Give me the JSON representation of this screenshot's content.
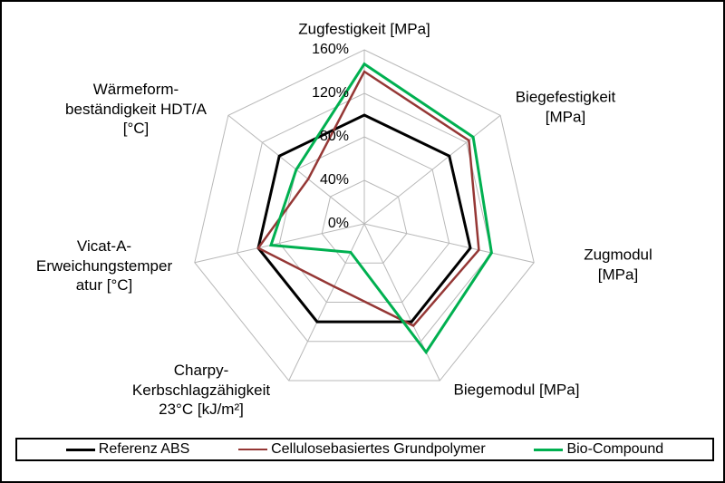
{
  "figure": {
    "background": "#FFFFFF",
    "border_color": "#000000"
  },
  "chart_data": {
    "type": "radar",
    "title": "",
    "unit": "%",
    "radial_range": [
      0,
      160
    ],
    "grid": true,
    "grid_color": "#B8B8B8",
    "ticks": [
      {
        "label": "160%",
        "value": 160
      },
      {
        "label": "120%",
        "value": 120
      },
      {
        "label": "80%",
        "value": 80
      },
      {
        "label": "40%",
        "value": 40
      },
      {
        "label": "0%",
        "value": 0
      }
    ],
    "axes": [
      {
        "id": "zugfestigkeit",
        "label": "Zugfestigkeit [MPa]",
        "label_lines": [
          "Zugfestigkeit [MPa]"
        ]
      },
      {
        "id": "biegefestigkeit",
        "label": "Biegefestigkeit [MPa]",
        "label_lines": [
          "Biegefestigkeit",
          "[MPa]"
        ]
      },
      {
        "id": "zugmodul",
        "label": "Zugmodul [MPa]",
        "label_lines": [
          "Zugmodul [MPa]"
        ]
      },
      {
        "id": "biegemodul",
        "label": "Biegemodul [MPa]",
        "label_lines": [
          "Biegemodul [MPa]"
        ]
      },
      {
        "id": "charpy",
        "label": "Charpy-Kerbschlagzähigkeit 23°C [kJ/m²]",
        "label_lines": [
          "Charpy-",
          "Kerbschlagzähigkeit",
          "23°C [kJ/m²]"
        ]
      },
      {
        "id": "vicat",
        "label": "Vicat-A-Erweichungstemperatur [°C]",
        "label_lines": [
          "Vicat-A-",
          "Erweichungstemper",
          "atur [°C]"
        ]
      },
      {
        "id": "waermeform",
        "label": "Wärmeformbeständigkeit HDT/A [°C]",
        "label_lines": [
          "Wärmeform-",
          "beständigkeit HDT/A",
          "[°C]"
        ]
      }
    ],
    "series": [
      {
        "name": "Referenz ABS",
        "color": "#000000",
        "stroke_width": 3,
        "values": [
          100,
          100,
          100,
          100,
          100,
          100,
          100
        ]
      },
      {
        "name": "Cellulosebasiertes Grundpolymer",
        "color": "#953735",
        "stroke_width": 2.5,
        "values": [
          140,
          123,
          108,
          104,
          64,
          100,
          66
        ]
      },
      {
        "name": "Bio-Compound",
        "color": "#00B050",
        "stroke_width": 3,
        "values": [
          147,
          128,
          120,
          131,
          29,
          88,
          80
        ]
      }
    ],
    "legend_position": "bottom"
  }
}
